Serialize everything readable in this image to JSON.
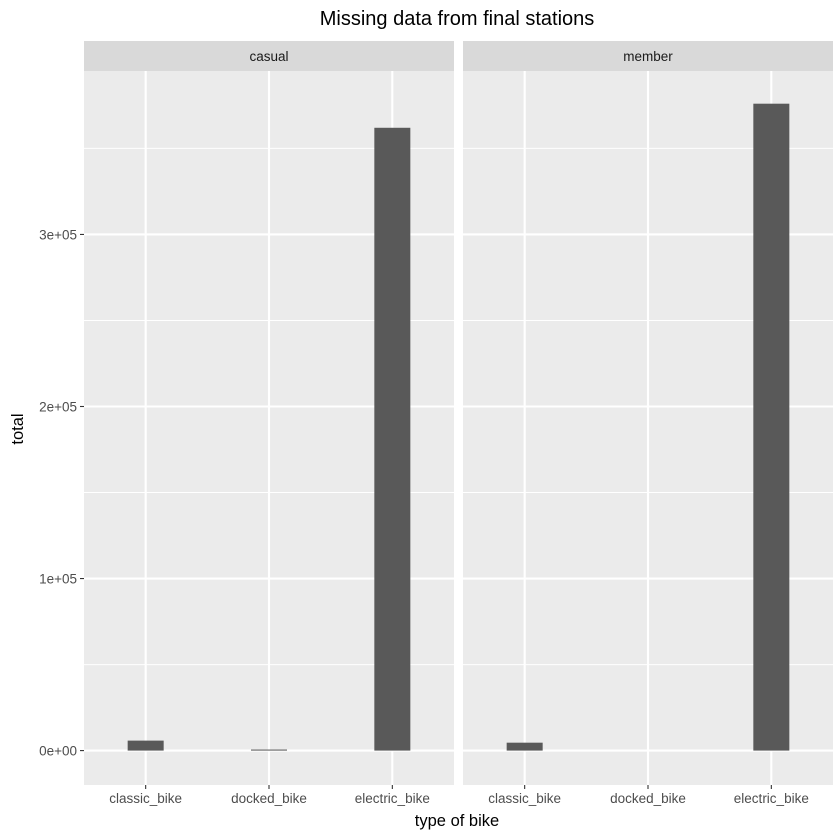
{
  "chart_data": {
    "type": "bar",
    "title": "Missing data from final stations",
    "xlabel": "type of bike",
    "ylabel": "total",
    "categories": [
      "classic_bike",
      "docked_bike",
      "electric_bike"
    ],
    "facets": [
      {
        "name": "casual",
        "values": [
          5800,
          600,
          362000
        ]
      },
      {
        "name": "member",
        "values": [
          4600,
          0,
          376000
        ]
      }
    ],
    "ylim": [
      -20000,
      395000
    ],
    "y_ticks": [
      0,
      100000,
      200000,
      300000
    ],
    "y_tick_labels": [
      "0e+00",
      "1e+05",
      "2e+05",
      "3e+05"
    ],
    "grid": true,
    "colors": {
      "bar": "#595959",
      "panel": "#ebebeb",
      "strip": "#d9d9d9"
    }
  }
}
